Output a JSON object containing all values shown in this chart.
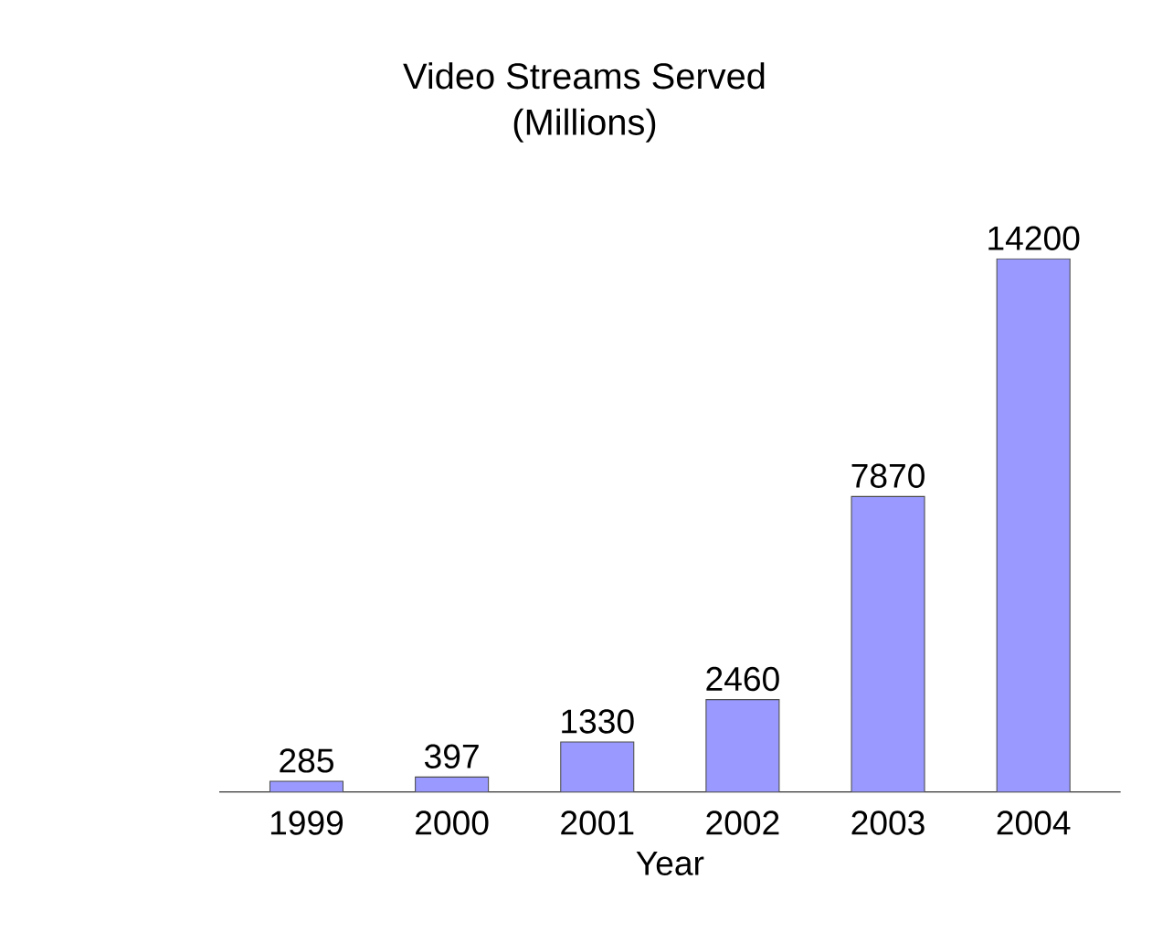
{
  "chart_data": {
    "type": "bar",
    "title": "Video Streams Served",
    "subtitle": "(Millions)",
    "xlabel": "Year",
    "categories": [
      "1999",
      "2000",
      "2001",
      "2002",
      "2003",
      "2004"
    ],
    "values": [
      285,
      397,
      1330,
      2460,
      7870,
      14200
    ],
    "color": "#9999ff",
    "data_labels": true
  }
}
